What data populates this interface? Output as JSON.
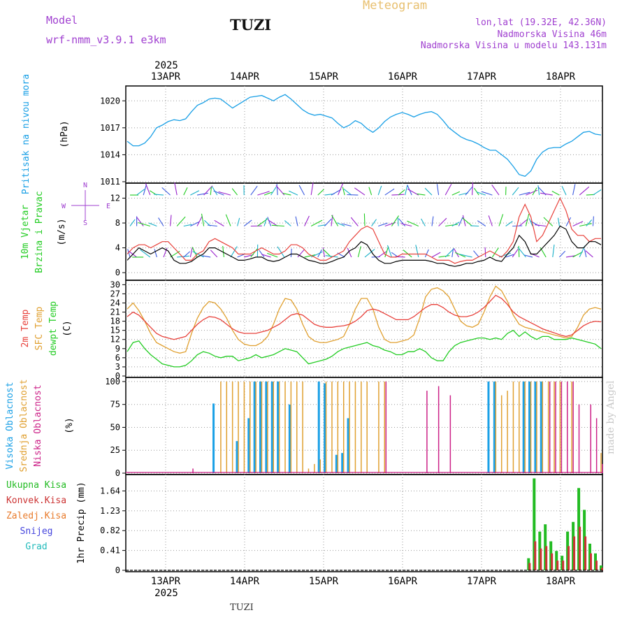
{
  "header": {
    "model_label": "Model",
    "model_name": "wrf-nmm_v3.9.1 e3km",
    "station": "TUZI",
    "meteogram": "Meteogram",
    "lonlat": "lon,lat (19.32E, 42.36N)",
    "elevation": "Nadmorska Visina 46m",
    "model_elevation": "Nadmorska Visina u modelu 143.131m"
  },
  "footer": {
    "station": "TUZI",
    "credit": "made by Angel"
  },
  "colors": {
    "pressure": "#1aa0e6",
    "temp2m": "#e8403a",
    "sfc": "#e0a030",
    "dewpt": "#22cc22",
    "high_cloud": "#1aa0e6",
    "mid_cloud": "#e0a030",
    "low_cloud": "#cc2288",
    "precip_total": "#22bb22",
    "precip_conv": "#cc3333",
    "precip_frz": "#e87a2a",
    "snow": "#4444dd",
    "hail": "#22bbbb",
    "header_purple": "#a040d0",
    "header_gold": "#e8c070"
  },
  "chart_data": [
    {
      "type": "line",
      "title": "Pritisak na nivou mora",
      "ylabel": "(hPa)",
      "x_labels_top": [
        "13APR",
        "14APR",
        "15APR",
        "16APR",
        "17APR",
        "18APR"
      ],
      "year_top": "2025",
      "yticks": [
        "1011",
        "1014",
        "1017",
        "1020"
      ],
      "ylim": [
        1011,
        1021.5
      ],
      "series": [
        {
          "name": "MSLP",
          "values": [
            1015.5,
            1015,
            1015,
            1015.3,
            1016,
            1017,
            1017.3,
            1017.7,
            1017.9,
            1017.8,
            1018,
            1018.8,
            1019.5,
            1019.8,
            1020.2,
            1020.3,
            1020.2,
            1019.7,
            1019.2,
            1019.6,
            1020,
            1020.4,
            1020.5,
            1020.6,
            1020.3,
            1020,
            1020.4,
            1020.7,
            1020.2,
            1019.6,
            1019,
            1018.6,
            1018.4,
            1018.5,
            1018.3,
            1018.1,
            1017.5,
            1017,
            1017.3,
            1017.8,
            1017.5,
            1016.9,
            1016.5,
            1017,
            1017.7,
            1018.2,
            1018.5,
            1018.7,
            1018.5,
            1018.2,
            1018.5,
            1018.7,
            1018.8,
            1018.5,
            1017.8,
            1017,
            1016.5,
            1016,
            1015.7,
            1015.5,
            1015.2,
            1014.8,
            1014.5,
            1014.5,
            1014,
            1013.5,
            1012.7,
            1011.8,
            1011.6,
            1012.2,
            1013.5,
            1014.3,
            1014.7,
            1014.8,
            1014.8,
            1015.2,
            1015.5,
            1016,
            1016.5,
            1016.6,
            1016.3,
            1016.2
          ]
        }
      ]
    },
    {
      "type": "line",
      "title": "10m Vjetar",
      "subtitle": "Brzina i Pravac",
      "ylabel": "(m/s)",
      "compass": {
        "n": "N",
        "w": "W",
        "e": "E",
        "s": "S"
      },
      "yticks": [
        "0",
        "4",
        "8",
        "12"
      ],
      "ylim": [
        -1,
        14.2
      ],
      "series": [
        {
          "name": "speed",
          "values": [
            2,
            3,
            4,
            3.5,
            3,
            3.5,
            4,
            3.5,
            2,
            1.5,
            1.5,
            1.8,
            2.5,
            3,
            4,
            4,
            3.5,
            3,
            2.5,
            2,
            2,
            2.2,
            2.5,
            2.5,
            2,
            1.8,
            2,
            2.5,
            3,
            3,
            2.5,
            2,
            1.8,
            1.5,
            1.5,
            1.8,
            2.2,
            2.5,
            3.5,
            4,
            5,
            4.5,
            3,
            2,
            1.5,
            1.5,
            1.8,
            2,
            2,
            2,
            2,
            2,
            1.8,
            1.5,
            1.5,
            1.2,
            1,
            1.2,
            1.5,
            1.5,
            1.8,
            2,
            2.5,
            2,
            1.8,
            3,
            4,
            6,
            5,
            3,
            3,
            4,
            5,
            6,
            7.5,
            7,
            5,
            4,
            4,
            5,
            5,
            4.5
          ]
        },
        {
          "name": "gust",
          "values": [
            3,
            4,
            4.5,
            4.5,
            4,
            4.5,
            5,
            5,
            4,
            3,
            2,
            2,
            3,
            3.5,
            5,
            5.5,
            5,
            4.5,
            4,
            3,
            3,
            3,
            3.5,
            4,
            3.5,
            3,
            3,
            3.5,
            4.5,
            4.5,
            4,
            3,
            2.5,
            2,
            2,
            2.5,
            3,
            3.5,
            5,
            6,
            7,
            7.5,
            7,
            5,
            3,
            2.5,
            2.5,
            3,
            3,
            3,
            3,
            3,
            2.5,
            2,
            2,
            2,
            1.5,
            1.8,
            2,
            2,
            2.5,
            3,
            3.5,
            3,
            2.5,
            3.5,
            5,
            9,
            11,
            9,
            5,
            6,
            8,
            10,
            12,
            10,
            7,
            6,
            6,
            5,
            5.5,
            5.5
          ]
        }
      ]
    },
    {
      "type": "line",
      "titles": [
        "2m Temp",
        "SFC Temp",
        "dewpt Temp"
      ],
      "ylabel": "(C)",
      "yticks": [
        "0",
        "3",
        "6",
        "9",
        "12",
        "15",
        "18",
        "21",
        "24",
        "27",
        "30"
      ],
      "ylim": [
        0,
        31
      ],
      "series": [
        {
          "name": "2m Temp",
          "values": [
            19.5,
            21,
            20,
            18,
            16,
            14,
            13,
            12.5,
            12,
            12.5,
            13,
            15,
            17,
            18.5,
            19.5,
            19.3,
            18.5,
            17,
            15.5,
            14.5,
            14,
            14,
            14,
            14.5,
            15,
            16,
            17,
            18.5,
            20,
            20.5,
            20,
            18.5,
            17,
            16.3,
            16,
            16,
            16.3,
            16.5,
            17,
            18,
            19.5,
            21.5,
            22,
            21.5,
            20.5,
            19.5,
            18.5,
            18.5,
            18.5,
            19.5,
            21,
            22.5,
            23.5,
            23.5,
            22.5,
            21,
            20,
            19.5,
            19.5,
            20,
            21,
            22.5,
            24.5,
            26.5,
            25.5,
            23.5,
            21,
            19.5,
            18.5,
            17.5,
            16.5,
            15.5,
            14.8,
            14.2,
            13.5,
            13,
            13.5,
            15,
            16.5,
            17.5,
            18,
            17.8
          ]
        },
        {
          "name": "SFC Temp",
          "values": [
            22,
            24,
            21.5,
            18,
            14,
            11,
            10,
            9,
            8,
            7.5,
            8,
            14,
            19,
            22.5,
            24.5,
            24,
            22,
            19,
            15,
            12,
            10.5,
            10,
            10,
            11,
            13,
            17,
            22,
            25.5,
            25,
            22,
            17,
            13,
            11.5,
            11,
            11,
            11.5,
            12,
            13,
            17,
            22,
            25.5,
            25.5,
            22,
            16,
            12,
            11,
            11,
            11.5,
            12,
            13.5,
            19,
            26,
            28.5,
            29,
            28,
            26,
            22,
            18,
            16.5,
            16,
            17,
            21,
            26,
            29.5,
            28,
            24.5,
            20,
            17,
            16,
            15.5,
            15,
            14.5,
            14,
            13.5,
            13,
            12.5,
            13,
            16,
            20,
            22,
            22.5,
            22
          ]
        },
        {
          "name": "dewpt Temp",
          "values": [
            8,
            11,
            11.5,
            9,
            7,
            5.5,
            4,
            3.5,
            3,
            3,
            3.5,
            5,
            7,
            8,
            7.5,
            6.5,
            6,
            6.5,
            6.5,
            5,
            5.5,
            6,
            7,
            6,
            6.5,
            7,
            8,
            9,
            8.5,
            8,
            6,
            4,
            4.5,
            5,
            5.5,
            6.5,
            8,
            9,
            9.5,
            10,
            10.5,
            11,
            10,
            9.5,
            8.5,
            8,
            7,
            7,
            8,
            8,
            9,
            8,
            6,
            5,
            5,
            8,
            10,
            11,
            11.5,
            12,
            12.5,
            12.5,
            12,
            12.5,
            12,
            14,
            15,
            13,
            14.5,
            13,
            12,
            13,
            13,
            12,
            12,
            12,
            12.5,
            12,
            11.5,
            11,
            10.5,
            9
          ]
        }
      ]
    },
    {
      "type": "bar",
      "titles": [
        "Visoka Oblacnost",
        "Srednja Oblacnost",
        "Niska Oblacnost"
      ],
      "ylabel": "(%)",
      "yticks": [
        "0",
        "25",
        "50",
        "75",
        "100"
      ],
      "ylim": [
        0,
        103
      ],
      "series": [
        {
          "name": "high",
          "values": [
            0,
            0,
            0,
            0,
            0,
            0,
            0,
            0,
            0,
            0,
            0,
            0,
            0,
            0,
            0,
            76,
            0,
            0,
            0,
            35,
            0,
            60,
            100,
            100,
            100,
            100,
            100,
            0,
            75,
            0,
            0,
            0,
            0,
            100,
            98,
            0,
            20,
            22,
            60,
            0,
            0,
            0,
            0,
            0,
            0,
            0,
            0,
            0,
            0,
            0,
            0,
            0,
            0,
            0,
            0,
            0,
            0,
            0,
            0,
            0,
            0,
            0,
            100,
            100,
            0,
            0,
            0,
            0,
            100,
            100,
            100,
            100,
            0,
            0,
            0,
            0,
            0,
            0,
            0,
            0,
            0,
            0
          ]
        },
        {
          "name": "mid",
          "values": [
            0,
            0,
            0,
            0,
            0,
            0,
            0,
            0,
            0,
            0,
            0,
            0,
            0,
            0,
            0,
            0,
            100,
            100,
            100,
            100,
            100,
            100,
            100,
            100,
            100,
            100,
            100,
            100,
            100,
            100,
            100,
            5,
            10,
            15,
            100,
            100,
            100,
            100,
            100,
            100,
            100,
            100,
            0,
            100,
            100,
            0,
            0,
            0,
            0,
            0,
            0,
            0,
            0,
            0,
            0,
            0,
            0,
            0,
            0,
            0,
            0,
            0,
            0,
            100,
            85,
            90,
            100,
            100,
            100,
            100,
            100,
            100,
            100,
            100,
            100,
            0,
            100,
            0,
            0,
            0,
            0,
            22
          ]
        },
        {
          "name": "low",
          "values": [
            0,
            0,
            0,
            0,
            0,
            0,
            0,
            0,
            0,
            0,
            0,
            5,
            0,
            0,
            0,
            0,
            0,
            0,
            0,
            0,
            0,
            0,
            0,
            0,
            0,
            0,
            0,
            0,
            0,
            0,
            0,
            0,
            0,
            0,
            0,
            0,
            0,
            0,
            0,
            0,
            0,
            0,
            0,
            0,
            100,
            0,
            0,
            0,
            0,
            0,
            0,
            90,
            0,
            95,
            0,
            85,
            0,
            0,
            0,
            0,
            0,
            0,
            0,
            0,
            0,
            0,
            0,
            0,
            0,
            0,
            0,
            0,
            100,
            100,
            100,
            100,
            100,
            75,
            0,
            75,
            60,
            10
          ]
        }
      ]
    },
    {
      "type": "bar",
      "titles": [
        "Ukupna Kisa",
        "Konvek.Kisa",
        "Zaledj.Kisa",
        "Snijeg",
        "Grad"
      ],
      "ylabel": "1hr Precip (mm)",
      "x_labels_bottom": [
        "13APR",
        "14APR",
        "15APR",
        "16APR",
        "17APR",
        "18APR"
      ],
      "year_bottom": "2025",
      "yticks": [
        "0",
        "0.41",
        "0.82",
        "1.23",
        "1.64"
      ],
      "ylim": [
        0,
        1.95
      ],
      "series": [
        {
          "name": "total",
          "values": [
            0,
            0,
            0,
            0,
            0,
            0,
            0,
            0,
            0,
            0,
            0,
            0,
            0,
            0,
            0,
            0,
            0,
            0,
            0,
            0,
            0,
            0,
            0,
            0,
            0,
            0,
            0,
            0,
            0,
            0,
            0,
            0,
            0,
            0,
            0,
            0,
            0,
            0,
            0,
            0,
            0,
            0,
            0,
            0,
            0,
            0,
            0,
            0,
            0,
            0,
            0,
            0,
            0,
            0,
            0,
            0,
            0,
            0,
            0,
            0,
            0,
            0,
            0,
            0,
            0,
            0,
            0,
            0,
            0,
            0,
            0,
            0,
            0.25,
            1.9,
            0.8,
            0.95,
            0.6,
            0.4,
            0.3,
            0.8,
            1.0,
            1.7,
            1.25,
            0.55,
            0.35,
            0.1
          ]
        },
        {
          "name": "convective",
          "values": [
            0,
            0,
            0,
            0,
            0,
            0,
            0,
            0,
            0,
            0,
            0,
            0,
            0,
            0,
            0,
            0,
            0,
            0,
            0,
            0,
            0,
            0,
            0,
            0,
            0,
            0,
            0,
            0,
            0,
            0,
            0,
            0,
            0,
            0,
            0,
            0,
            0,
            0,
            0,
            0,
            0,
            0,
            0,
            0,
            0,
            0,
            0,
            0,
            0,
            0,
            0,
            0,
            0,
            0,
            0,
            0,
            0,
            0,
            0,
            0,
            0,
            0,
            0,
            0,
            0,
            0,
            0,
            0,
            0,
            0,
            0,
            0,
            0.15,
            0.6,
            0.45,
            0.5,
            0.35,
            0.2,
            0.2,
            0.5,
            0.7,
            0.9,
            0.7,
            0.35,
            0.2,
            0.05
          ]
        }
      ]
    }
  ]
}
